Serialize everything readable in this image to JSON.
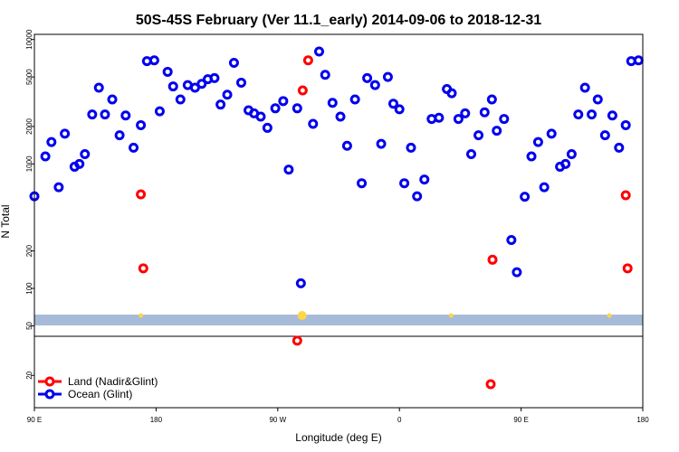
{
  "chart_data": {
    "type": "scatter",
    "title": "50S-45S February (Ver 11.1_early)   2014-09-06 to 2018-12-31",
    "xlabel": "Longitude (deg E)",
    "ylabel": "N Total",
    "y_scale": "log",
    "ylim": [
      11,
      11000
    ],
    "x_ticks": [
      "90 E",
      "180",
      "90 W",
      "0",
      "90 E",
      "180"
    ],
    "y_ticks": [
      "20",
      "50",
      "100",
      "200",
      "1000",
      "2000",
      "5000",
      "10000"
    ],
    "y_tick_values": [
      20,
      50,
      100,
      200,
      1000,
      2000,
      5000,
      10000
    ],
    "band_color": "#a7bbd9",
    "band_marker_color": "#ffd54a",
    "band_marker_positions": [
      0.175,
      0.44,
      0.685,
      0.945
    ],
    "legend": {
      "position": "bottom-left",
      "entries": [
        {
          "label": "Land (Nadir&Glint)",
          "color": "#ff0000"
        },
        {
          "label": "Ocean (Glint)",
          "color": "#0000ee"
        }
      ]
    },
    "series": [
      {
        "name": "Ocean (Glint)",
        "color": "#0000ee",
        "points": [
          [
            0.0,
            550
          ],
          [
            0.018,
            1150
          ],
          [
            0.028,
            1500
          ],
          [
            0.04,
            650
          ],
          [
            0.05,
            1750
          ],
          [
            0.066,
            950
          ],
          [
            0.074,
            1000
          ],
          [
            0.083,
            1200
          ],
          [
            0.095,
            2500
          ],
          [
            0.106,
            4100
          ],
          [
            0.116,
            2500
          ],
          [
            0.128,
            3300
          ],
          [
            0.14,
            1700
          ],
          [
            0.15,
            2450
          ],
          [
            0.163,
            1350
          ],
          [
            0.175,
            2050
          ],
          [
            0.185,
            6700
          ],
          [
            0.197,
            6800
          ],
          [
            0.206,
            2650
          ],
          [
            0.219,
            5500
          ],
          [
            0.228,
            4200
          ],
          [
            0.24,
            3300
          ],
          [
            0.252,
            4300
          ],
          [
            0.264,
            4100
          ],
          [
            0.275,
            4400
          ],
          [
            0.285,
            4800
          ],
          [
            0.296,
            4900
          ],
          [
            0.306,
            3000
          ],
          [
            0.317,
            3600
          ],
          [
            0.328,
            6500
          ],
          [
            0.34,
            4500
          ],
          [
            0.352,
            2700
          ],
          [
            0.361,
            2550
          ],
          [
            0.372,
            2400
          ],
          [
            0.383,
            1950
          ],
          [
            0.396,
            2800
          ],
          [
            0.409,
            3200
          ],
          [
            0.418,
            900
          ],
          [
            0.432,
            2800
          ],
          [
            0.438,
            110
          ],
          [
            0.458,
            2100
          ],
          [
            0.468,
            8000
          ],
          [
            0.478,
            5200
          ],
          [
            0.49,
            3100
          ],
          [
            0.503,
            2400
          ],
          [
            0.514,
            1400
          ],
          [
            0.527,
            3300
          ],
          [
            0.538,
            700
          ],
          [
            0.547,
            4900
          ],
          [
            0.56,
            4300
          ],
          [
            0.57,
            1450
          ],
          [
            0.581,
            5000
          ],
          [
            0.59,
            3050
          ],
          [
            0.6,
            2750
          ],
          [
            0.608,
            700
          ],
          [
            0.619,
            1350
          ],
          [
            0.629,
            550
          ],
          [
            0.641,
            750
          ],
          [
            0.653,
            2300
          ],
          [
            0.665,
            2350
          ],
          [
            0.678,
            4000
          ],
          [
            0.686,
            3700
          ],
          [
            0.697,
            2300
          ],
          [
            0.708,
            2550
          ],
          [
            0.718,
            1200
          ],
          [
            0.73,
            1700
          ],
          [
            0.74,
            2600
          ],
          [
            0.752,
            3300
          ],
          [
            0.76,
            1850
          ],
          [
            0.772,
            2300
          ],
          [
            0.784,
            245
          ],
          [
            0.793,
            135
          ],
          [
            0.806,
            545
          ],
          [
            0.817,
            1150
          ],
          [
            0.828,
            1500
          ],
          [
            0.838,
            650
          ],
          [
            0.85,
            1750
          ],
          [
            0.864,
            950
          ],
          [
            0.873,
            1000
          ],
          [
            0.883,
            1200
          ],
          [
            0.894,
            2500
          ],
          [
            0.905,
            4100
          ],
          [
            0.916,
            2500
          ],
          [
            0.926,
            3300
          ],
          [
            0.938,
            1700
          ],
          [
            0.95,
            2450
          ],
          [
            0.961,
            1350
          ],
          [
            0.972,
            2050
          ],
          [
            0.981,
            6700
          ],
          [
            0.993,
            6800
          ]
        ]
      },
      {
        "name": "Land (Nadir&Glint)",
        "color": "#ff0000",
        "points": [
          [
            0.175,
            570
          ],
          [
            0.179,
            145
          ],
          [
            0.432,
            38
          ],
          [
            0.441,
            3900
          ],
          [
            0.45,
            6800
          ],
          [
            0.75,
            17
          ],
          [
            0.753,
            170
          ],
          [
            0.972,
            560
          ],
          [
            0.975,
            145
          ]
        ]
      }
    ]
  }
}
